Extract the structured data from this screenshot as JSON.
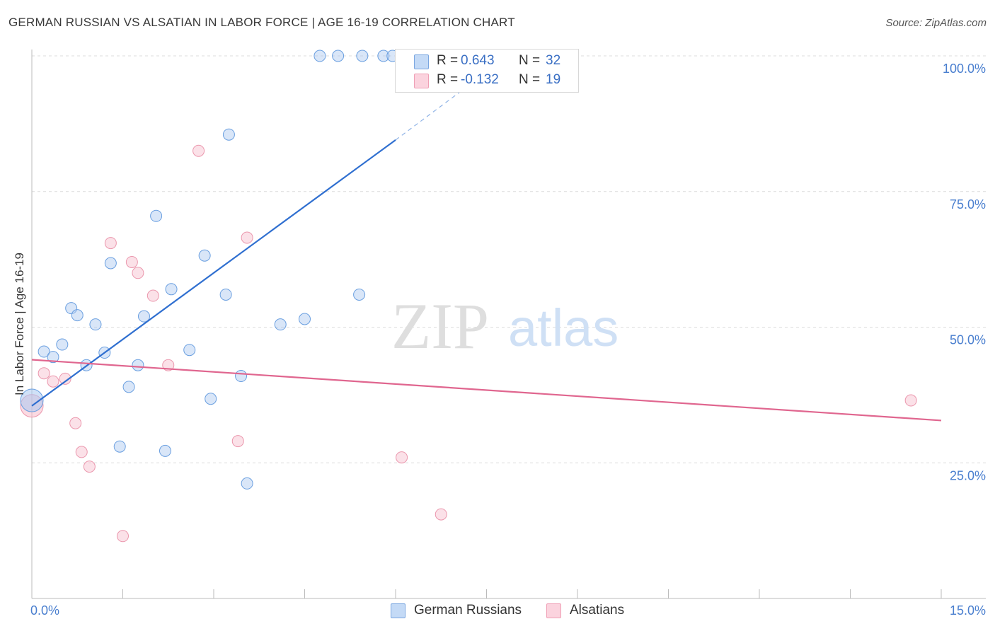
{
  "header": {
    "title": "GERMAN RUSSIAN VS ALSATIAN IN LABOR FORCE | AGE 16-19 CORRELATION CHART",
    "source": "Source: ZipAtlas.com"
  },
  "watermark": {
    "zip": "ZIP",
    "atlas": "atlas"
  },
  "stats_legend": {
    "rows": [
      {
        "r_label": "R =",
        "r_value": "0.643",
        "n_label": "N =",
        "n_value": "32",
        "color": "#aac8f0"
      },
      {
        "r_label": "R =",
        "r_value": "-0.132",
        "n_label": "N =",
        "n_value": "19",
        "color": "#f7bccb"
      }
    ]
  },
  "chart_data": {
    "type": "scatter",
    "title": "GERMAN RUSSIAN VS ALSATIAN IN LABOR FORCE | AGE 16-19 CORRELATION CHART",
    "xlabel": "",
    "ylabel": "In Labor Force | Age 16-19",
    "xlim": [
      0,
      15
    ],
    "ylim": [
      0,
      100
    ],
    "x_tick_labels": [
      "0.0%",
      "15.0%"
    ],
    "y_tick_labels": [
      "25.0%",
      "50.0%",
      "75.0%",
      "100.0%"
    ],
    "y_tick_values": [
      25,
      50,
      75,
      100
    ],
    "grid": true,
    "legend_position": "bottom-center",
    "series": [
      {
        "name": "German Russians",
        "color": "#aac8f0",
        "stroke": "#6a9fe0",
        "trend_color": "#2f6fd0",
        "r": 0.643,
        "n": 32,
        "trend": {
          "x0": 0.0,
          "y0": 35.5,
          "x1": 6.0,
          "y1": 84.5,
          "dash_x1": 7.5,
          "dash_y1": 97.0
        },
        "points": [
          [
            0.0,
            36.5
          ],
          [
            0.2,
            45.5
          ],
          [
            0.35,
            44.5
          ],
          [
            0.5,
            46.8
          ],
          [
            0.65,
            53.5
          ],
          [
            0.75,
            52.2
          ],
          [
            0.9,
            43.0
          ],
          [
            1.05,
            50.5
          ],
          [
            1.2,
            45.3
          ],
          [
            1.3,
            61.8
          ],
          [
            1.45,
            28.0
          ],
          [
            1.6,
            39.0
          ],
          [
            1.75,
            43.0
          ],
          [
            1.85,
            52.0
          ],
          [
            2.05,
            70.5
          ],
          [
            2.2,
            27.2
          ],
          [
            2.3,
            57.0
          ],
          [
            2.6,
            45.8
          ],
          [
            2.85,
            63.2
          ],
          [
            2.95,
            36.8
          ],
          [
            3.2,
            56.0
          ],
          [
            3.25,
            85.5
          ],
          [
            3.45,
            41.0
          ],
          [
            3.55,
            21.2
          ],
          [
            4.1,
            50.5
          ],
          [
            4.5,
            51.5
          ],
          [
            4.75,
            100.0
          ],
          [
            5.05,
            100.0
          ],
          [
            5.4,
            56.0
          ],
          [
            5.45,
            100.0
          ],
          [
            5.8,
            100.0
          ],
          [
            5.95,
            100.0
          ]
        ]
      },
      {
        "name": "Alsatians",
        "color": "#f7bccb",
        "stroke": "#eb97ad",
        "trend_color": "#e0668f",
        "r": -0.132,
        "n": 19,
        "trend": {
          "x0": 0.0,
          "y0": 44.0,
          "x1": 15.0,
          "y1": 32.8
        },
        "points": [
          [
            0.0,
            35.5
          ],
          [
            0.2,
            41.5
          ],
          [
            0.35,
            40.0
          ],
          [
            0.55,
            40.5
          ],
          [
            0.72,
            32.3
          ],
          [
            0.82,
            27.0
          ],
          [
            0.95,
            24.3
          ],
          [
            1.3,
            65.5
          ],
          [
            1.5,
            11.5
          ],
          [
            1.65,
            62.0
          ],
          [
            1.75,
            60.0
          ],
          [
            2.0,
            55.8
          ],
          [
            2.25,
            43.0
          ],
          [
            2.75,
            82.5
          ],
          [
            3.4,
            29.0
          ],
          [
            3.55,
            66.5
          ],
          [
            6.1,
            26.0
          ],
          [
            6.75,
            15.5
          ],
          [
            14.5,
            36.5
          ]
        ]
      }
    ]
  }
}
